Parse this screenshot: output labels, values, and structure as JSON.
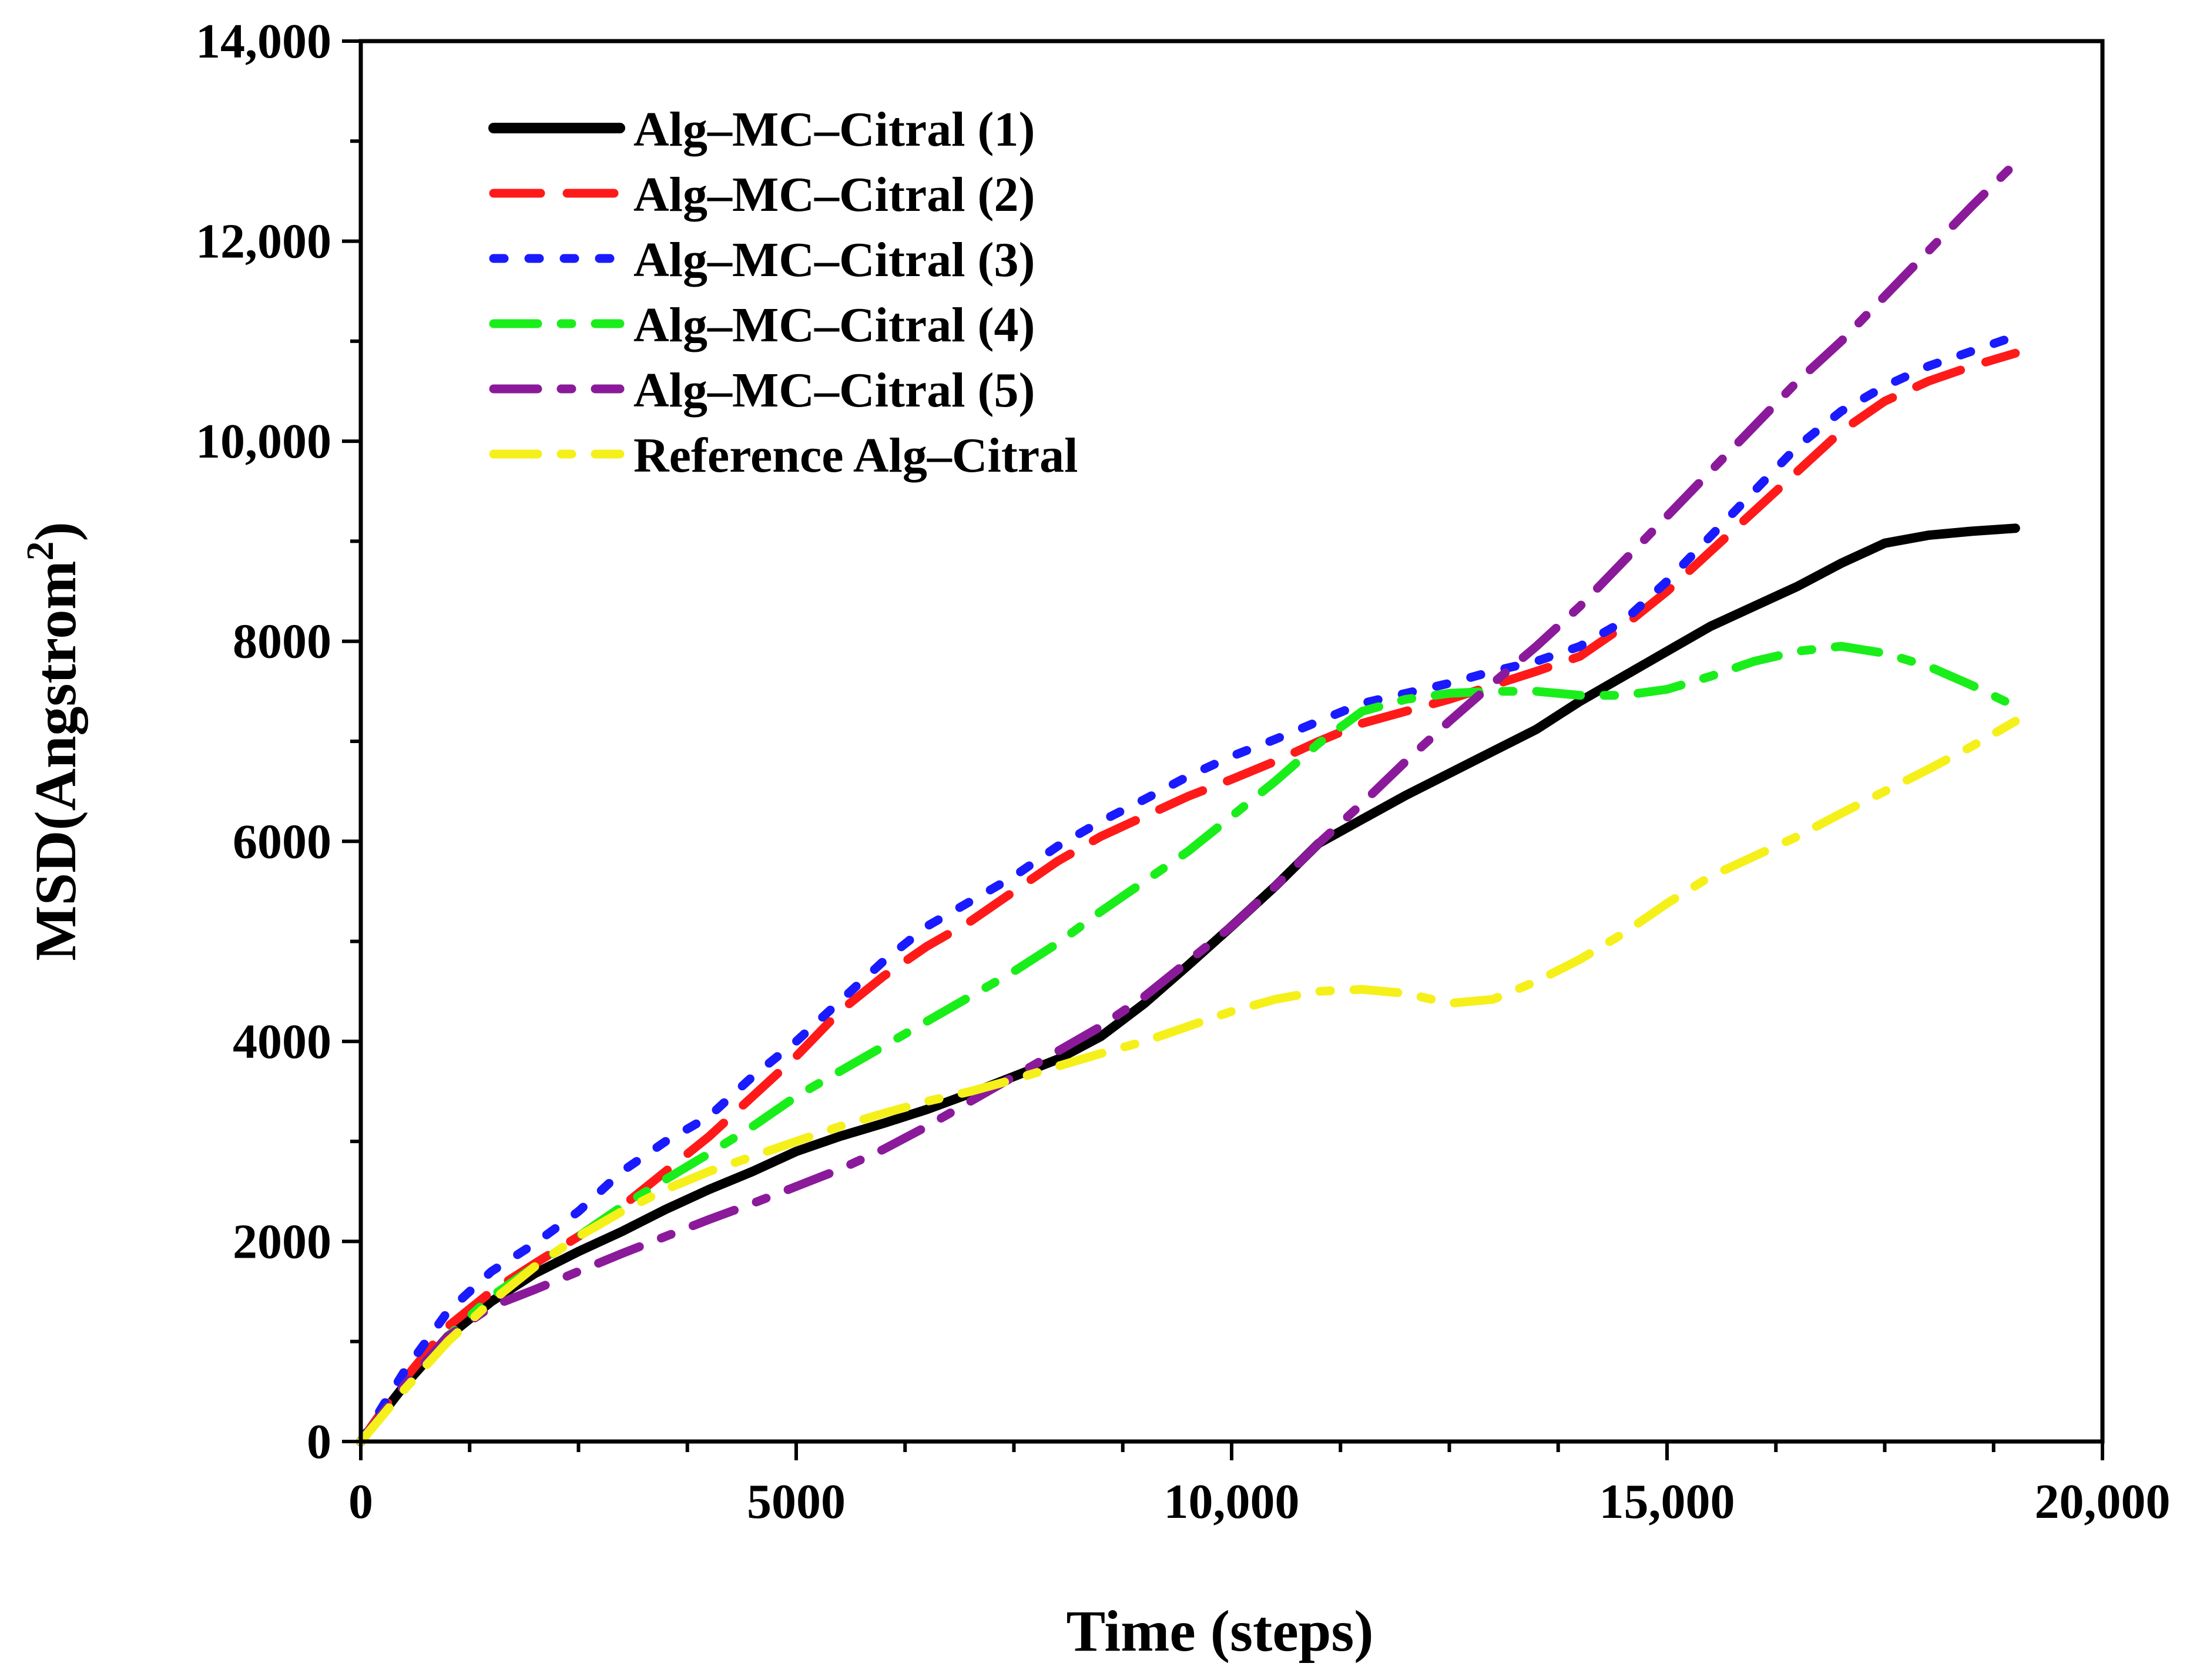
{
  "chart_data": {
    "type": "line",
    "xlabel": "Time (steps)",
    "ylabel": {
      "main": "MSD(Angstrom",
      "superscript": "2",
      "close": ")"
    },
    "xlim": [
      0,
      20000
    ],
    "ylim": [
      0,
      14000
    ],
    "xticks": [
      {
        "value": 0,
        "label": "0"
      },
      {
        "value": 5000,
        "label": "5000"
      },
      {
        "value": 10000,
        "label": "10,000"
      },
      {
        "value": 15000,
        "label": "15,000"
      },
      {
        "value": 20000,
        "label": "20,000"
      }
    ],
    "yticks": [
      {
        "value": 0,
        "label": "0"
      },
      {
        "value": 2000,
        "label": "2000"
      },
      {
        "value": 4000,
        "label": "4000"
      },
      {
        "value": 6000,
        "label": "6000"
      },
      {
        "value": 8000,
        "label": "8000"
      },
      {
        "value": 10000,
        "label": "10,000"
      },
      {
        "value": 12000,
        "label": "12,000"
      },
      {
        "value": 14000,
        "label": "14,000"
      }
    ],
    "x_minor_step": 1250,
    "y_minor_step": 1000,
    "grid": false,
    "legend_position": "top-left",
    "series": [
      {
        "name": "Alg–MC–Citral (1)",
        "color": "#000000",
        "style": "solid",
        "x": [
          0,
          500,
          1000,
          1500,
          2000,
          2500,
          3000,
          3500,
          4000,
          4500,
          5000,
          5500,
          6000,
          6500,
          7000,
          7500,
          8000,
          8500,
          9000,
          9500,
          10000,
          10500,
          11000,
          11500,
          12000,
          12500,
          13000,
          13500,
          14000,
          14500,
          15000,
          15500,
          16000,
          16500,
          17000,
          17500,
          18000,
          18500,
          19000
        ],
        "y": [
          0,
          560,
          1050,
          1400,
          1680,
          1900,
          2100,
          2320,
          2520,
          2700,
          2900,
          3050,
          3180,
          3320,
          3480,
          3650,
          3820,
          4050,
          4380,
          4760,
          5150,
          5550,
          5980,
          6220,
          6460,
          6680,
          6900,
          7120,
          7400,
          7650,
          7900,
          8150,
          8350,
          8550,
          8780,
          8980,
          9060,
          9100,
          9130
        ]
      },
      {
        "name": "Alg–MC–Citral (2)",
        "color": "#ff1a1a",
        "style": "dashed",
        "x": [
          0,
          500,
          1000,
          1500,
          2000,
          2500,
          3000,
          3500,
          4000,
          4500,
          5000,
          5500,
          6000,
          6500,
          7000,
          7500,
          8000,
          8500,
          9000,
          9500,
          10000,
          10500,
          11000,
          11500,
          12000,
          12500,
          13000,
          13500,
          14000,
          14500,
          15000,
          15500,
          16000,
          16500,
          17000,
          17500,
          18000,
          18500,
          19000
        ],
        "y": [
          0,
          620,
          1150,
          1500,
          1780,
          2050,
          2350,
          2700,
          3050,
          3450,
          3850,
          4300,
          4650,
          4950,
          5200,
          5500,
          5800,
          6050,
          6250,
          6450,
          6620,
          6800,
          7000,
          7180,
          7300,
          7420,
          7560,
          7700,
          7850,
          8150,
          8500,
          8900,
          9300,
          9700,
          10100,
          10400,
          10600,
          10750,
          10880
        ]
      },
      {
        "name": "Alg–MC–Citral (3)",
        "color": "#1a1aff",
        "style": "dotted",
        "x": [
          0,
          500,
          1000,
          1500,
          2000,
          2500,
          3000,
          3500,
          4000,
          4500,
          5000,
          5500,
          6000,
          6500,
          7000,
          7500,
          8000,
          8500,
          9000,
          9500,
          10000,
          10500,
          11000,
          11500,
          12000,
          12500,
          13000,
          13500,
          14000,
          14500,
          15000,
          15500,
          16000,
          16500,
          17000,
          17500,
          18000,
          18500,
          19000
        ],
        "y": [
          0,
          700,
          1300,
          1700,
          1980,
          2300,
          2700,
          3000,
          3250,
          3650,
          4000,
          4400,
          4800,
          5150,
          5400,
          5650,
          5950,
          6200,
          6420,
          6650,
          6850,
          7020,
          7200,
          7380,
          7480,
          7580,
          7700,
          7800,
          7950,
          8200,
          8600,
          9050,
          9500,
          9950,
          10300,
          10550,
          10750,
          10900,
          11050
        ]
      },
      {
        "name": "Alg–MC–Citral (4)",
        "color": "#1aee1a",
        "style": "dash-dot",
        "x": [
          0,
          500,
          1000,
          1500,
          2000,
          2500,
          3000,
          3500,
          4000,
          4500,
          5000,
          5500,
          6000,
          6500,
          7000,
          7500,
          8000,
          8500,
          9000,
          9500,
          10000,
          10500,
          11000,
          11500,
          12000,
          12500,
          13000,
          13500,
          14000,
          14500,
          15000,
          15500,
          16000,
          16500,
          17000,
          17500,
          18000,
          18500,
          19000
        ],
        "y": [
          0,
          560,
          1050,
          1450,
          1750,
          2050,
          2350,
          2620,
          2880,
          3150,
          3450,
          3700,
          3950,
          4200,
          4450,
          4700,
          4980,
          5300,
          5600,
          5900,
          6250,
          6600,
          6980,
          7300,
          7420,
          7480,
          7500,
          7500,
          7460,
          7460,
          7520,
          7650,
          7800,
          7900,
          7950,
          7880,
          7750,
          7560,
          7350
        ]
      },
      {
        "name": "Alg–MC–Citral (5)",
        "color": "#8b1a9b",
        "style": "dash-dot",
        "x": [
          0,
          500,
          1000,
          1500,
          2000,
          2500,
          3000,
          3500,
          4000,
          4500,
          5000,
          5500,
          6000,
          6500,
          7000,
          7500,
          8000,
          8500,
          9000,
          9500,
          10000,
          10500,
          11000,
          11500,
          12000,
          12500,
          13000,
          13500,
          14000,
          14500,
          15000,
          15500,
          16000,
          16500,
          17000,
          17500,
          18000,
          18500,
          19000
        ],
        "y": [
          0,
          560,
          1050,
          1350,
          1520,
          1700,
          1880,
          2050,
          2220,
          2380,
          2550,
          2720,
          2920,
          3150,
          3400,
          3650,
          3900,
          4150,
          4450,
          4800,
          5150,
          5550,
          5980,
          6380,
          6800,
          7200,
          7580,
          7950,
          8350,
          8800,
          9250,
          9700,
          10150,
          10600,
          11000,
          11450,
          11900,
          12350,
          12780
        ]
      },
      {
        "name": "Reference Alg–Citral",
        "color": "#f5f01a",
        "style": "dash-dot",
        "x": [
          0,
          500,
          1000,
          1500,
          2000,
          2500,
          3000,
          3500,
          4000,
          4500,
          5000,
          5500,
          6000,
          6500,
          7000,
          7500,
          8000,
          8500,
          9000,
          9500,
          10000,
          10500,
          11000,
          11500,
          12000,
          12500,
          13000,
          13500,
          14000,
          14500,
          15000,
          15500,
          16000,
          16500,
          17000,
          17500,
          18000,
          18500,
          19000
        ],
        "y": [
          0,
          520,
          1000,
          1400,
          1750,
          2050,
          2300,
          2520,
          2700,
          2850,
          3000,
          3150,
          3280,
          3400,
          3500,
          3620,
          3750,
          3880,
          4000,
          4150,
          4300,
          4420,
          4500,
          4520,
          4480,
          4380,
          4420,
          4600,
          4820,
          5080,
          5380,
          5650,
          5850,
          6050,
          6280,
          6500,
          6720,
          6950,
          7200
        ]
      }
    ]
  }
}
